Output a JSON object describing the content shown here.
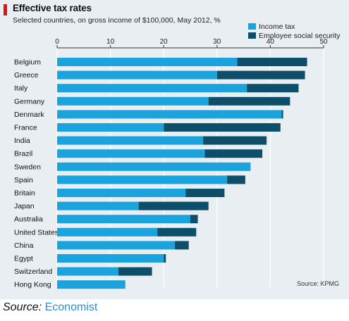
{
  "chart_data": {
    "type": "bar",
    "orientation": "horizontal",
    "stacked": true,
    "title": "Effective tax rates",
    "subtitle": "Selected countries, on gross income of $100,000, May 2012, %",
    "categories": [
      "Belgium",
      "Greece",
      "Italy",
      "Germany",
      "Denmark",
      "France",
      "India",
      "Brazil",
      "Sweden",
      "Spain",
      "Britain",
      "Japan",
      "Australia",
      "United States",
      "China",
      "Egypt",
      "Switzerland",
      "Hong Kong"
    ],
    "series": [
      {
        "name": "Income tax",
        "color": "#1aa3dc",
        "values": [
          33.8,
          30.0,
          35.6,
          28.4,
          42.1,
          20.0,
          27.4,
          27.7,
          36.3,
          31.9,
          24.1,
          15.3,
          25.0,
          18.8,
          22.1,
          20.0,
          11.5,
          12.8
        ]
      },
      {
        "name": "Employee social security",
        "color": "#0d4f6b",
        "values": [
          13.1,
          16.5,
          9.7,
          15.3,
          0.3,
          21.9,
          11.9,
          10.8,
          0.0,
          3.4,
          7.3,
          13.1,
          1.4,
          7.3,
          2.6,
          0.4,
          6.3,
          0.0
        ]
      }
    ],
    "xlim": [
      0,
      50
    ],
    "xticks": [
      0,
      10,
      20,
      30,
      40,
      50
    ],
    "grid": true,
    "legend_position": "top-right"
  },
  "source_note": "Source: KPMG",
  "source_line": {
    "prefix": "Source: ",
    "link": "Economist"
  }
}
